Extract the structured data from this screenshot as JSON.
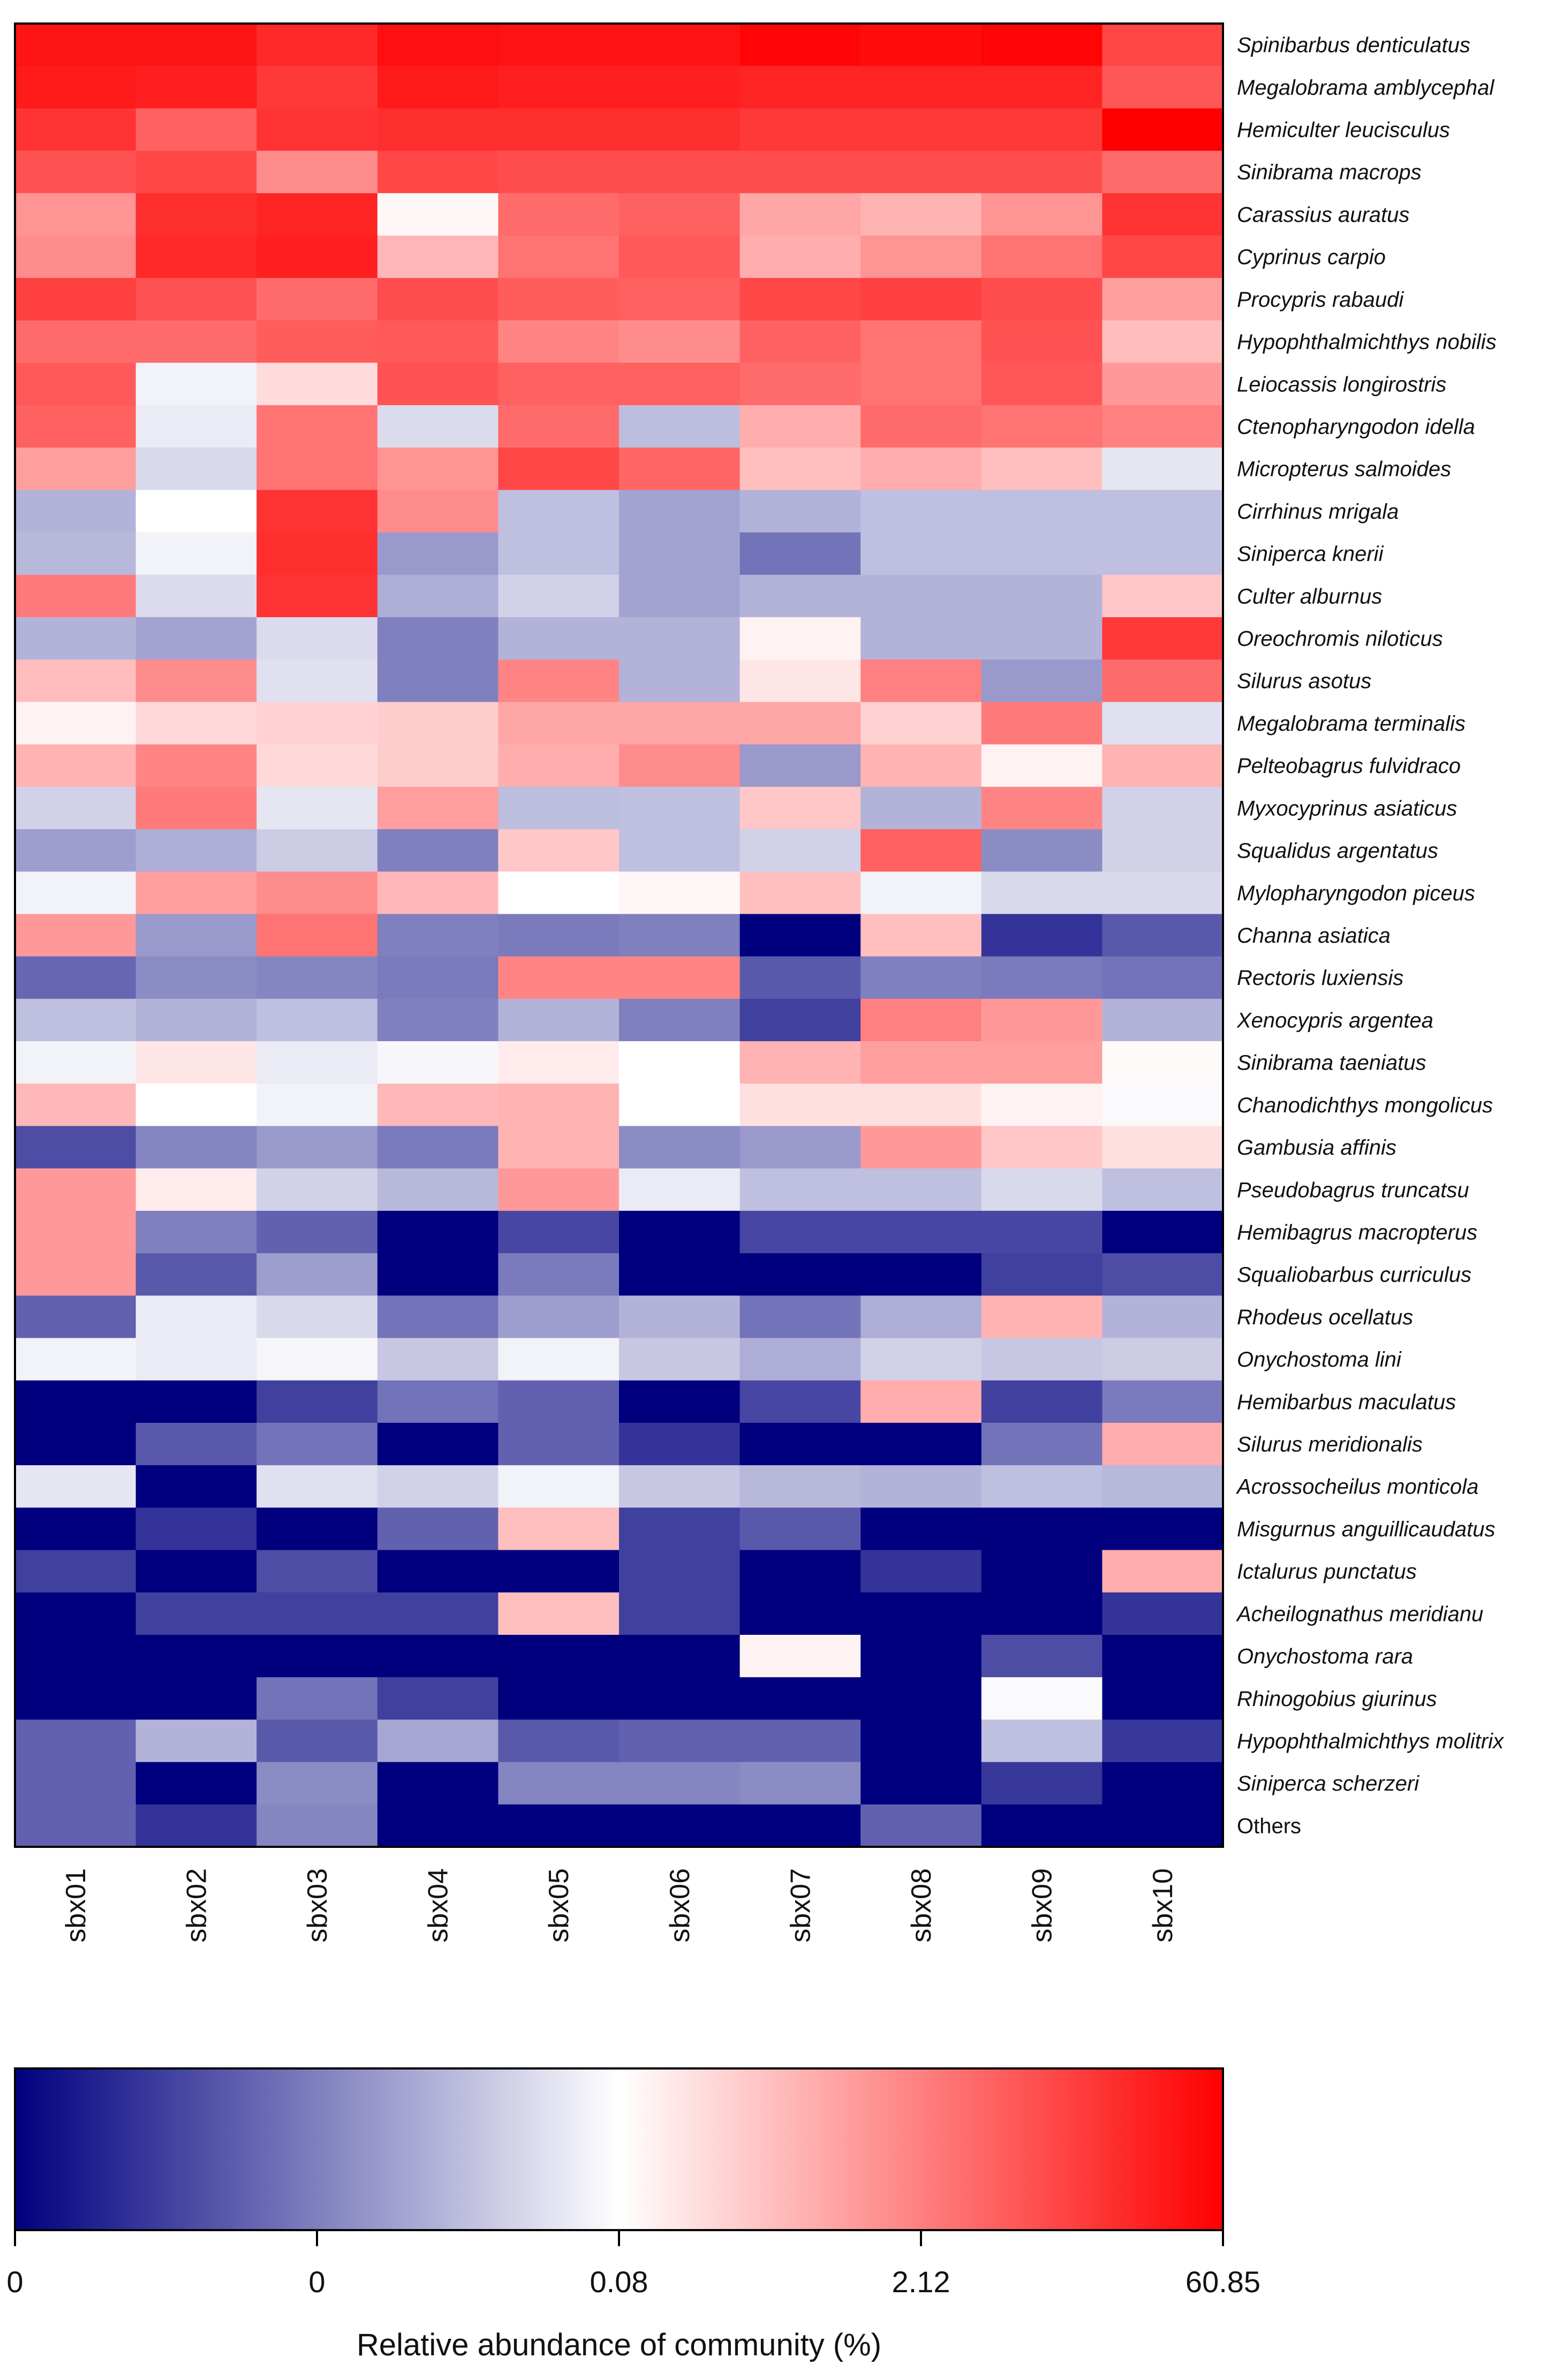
{
  "chart_data": {
    "type": "heatmap",
    "title": "",
    "color_scale": {
      "low": "#00007f",
      "mid": "#ffffff",
      "high": "#ff0000",
      "title": "Relative abundance of community (%)",
      "tick_labels": [
        "0",
        "0",
        "0.08",
        "2.12",
        "60.85"
      ]
    },
    "samples": [
      "sbx01",
      "sbx02",
      "sbx03",
      "sbx04",
      "sbx05",
      "sbx06",
      "sbx07",
      "sbx08",
      "sbx09",
      "sbx10"
    ],
    "species": [
      "Spinibarbus denticulatus",
      "Megalobrama amblycephal",
      "Hemiculter leucisculus",
      "Sinibrama macrops",
      "Carassius auratus",
      "Cyprinus carpio",
      "Procypris rabaudi",
      "Hypophthalmichthys nobilis",
      "Leiocassis longirostris",
      "Ctenopharyngodon idella",
      "Micropterus salmoides",
      "Cirrhinus mrigala",
      "Siniperca knerii",
      "Culter alburnus",
      "Oreochromis niloticus",
      "Silurus asotus",
      "Megalobrama terminalis",
      "Pelteobagrus fulvidraco",
      "Myxocyprinus asiaticus",
      "Squalidus argentatus",
      "Mylopharyngodon piceus",
      "Channa asiatica",
      "Rectoris luxiensis",
      "Xenocypris argentea",
      "Sinibrama taeniatus",
      "Chanodichthys mongolicus",
      "Gambusia affinis",
      "Pseudobagrus truncatsu",
      "Hemibagrus macropterus",
      "Squaliobarbus curriculus",
      "Rhodeus ocellatus",
      "Onychostoma lini",
      "Hemibarbus maculatus",
      "Silurus meridionalis",
      "Acrossocheilus monticola",
      "Misgurnus anguillicaudatus",
      "Ictalurus punctatus",
      "Acheilognathus meridianu",
      "Onychostoma rara",
      "Rhinogobius giurinus",
      "Hypophthalmichthys molitrix",
      "Siniperca scherzeri",
      "Others"
    ],
    "scale_note": "values are relative color-scale intensities from -1 (lowest, dark blue) through 0 (white) to 1 (highest, red)",
    "values": [
      [
        0.92,
        0.92,
        0.84,
        0.94,
        0.93,
        0.93,
        0.98,
        0.95,
        0.98,
        0.72
      ],
      [
        0.9,
        0.88,
        0.78,
        0.9,
        0.88,
        0.88,
        0.86,
        0.86,
        0.86,
        0.66
      ],
      [
        0.8,
        0.62,
        0.8,
        0.82,
        0.82,
        0.82,
        0.78,
        0.78,
        0.78,
        1.0
      ],
      [
        0.68,
        0.72,
        0.45,
        0.72,
        0.7,
        0.7,
        0.7,
        0.7,
        0.7,
        0.58
      ],
      [
        0.42,
        0.82,
        0.86,
        0.03,
        0.58,
        0.62,
        0.35,
        0.3,
        0.42,
        0.8
      ],
      [
        0.45,
        0.84,
        0.88,
        0.28,
        0.55,
        0.65,
        0.32,
        0.42,
        0.55,
        0.72
      ],
      [
        0.75,
        0.68,
        0.58,
        0.7,
        0.64,
        0.62,
        0.72,
        0.75,
        0.7,
        0.38
      ],
      [
        0.58,
        0.58,
        0.64,
        0.65,
        0.48,
        0.45,
        0.62,
        0.55,
        0.68,
        0.26
      ],
      [
        0.65,
        -0.05,
        0.14,
        0.68,
        0.62,
        0.62,
        0.58,
        0.55,
        0.66,
        0.4
      ],
      [
        0.62,
        -0.08,
        0.55,
        -0.14,
        0.58,
        -0.26,
        0.32,
        0.58,
        0.55,
        0.5
      ],
      [
        0.38,
        -0.15,
        0.55,
        0.42,
        0.72,
        0.6,
        0.25,
        0.32,
        0.25,
        -0.1
      ],
      [
        -0.3,
        0.0,
        0.8,
        0.45,
        -0.25,
        -0.36,
        -0.3,
        -0.25,
        -0.25,
        -0.25
      ],
      [
        -0.28,
        -0.05,
        0.82,
        -0.4,
        -0.25,
        -0.36,
        -0.55,
        -0.25,
        -0.25,
        -0.25
      ],
      [
        0.52,
        -0.14,
        0.8,
        -0.32,
        -0.18,
        -0.36,
        -0.3,
        -0.3,
        -0.3,
        0.22
      ],
      [
        -0.3,
        -0.36,
        -0.14,
        -0.5,
        -0.3,
        -0.3,
        0.05,
        -0.3,
        -0.3,
        0.78
      ],
      [
        0.26,
        0.45,
        -0.12,
        -0.5,
        0.48,
        -0.3,
        0.1,
        0.5,
        -0.4,
        0.58
      ],
      [
        0.05,
        0.15,
        0.18,
        0.2,
        0.35,
        0.35,
        0.35,
        0.18,
        0.52,
        -0.12
      ],
      [
        0.3,
        0.48,
        0.15,
        0.2,
        0.32,
        0.45,
        -0.4,
        0.3,
        0.05,
        0.3
      ],
      [
        -0.18,
        0.52,
        -0.1,
        0.38,
        -0.26,
        -0.25,
        0.22,
        -0.3,
        0.48,
        -0.18
      ],
      [
        -0.38,
        -0.32,
        -0.2,
        -0.5,
        0.22,
        -0.25,
        -0.18,
        0.62,
        -0.45,
        -0.18
      ],
      [
        -0.05,
        0.38,
        0.45,
        0.28,
        0.0,
        0.03,
        0.25,
        -0.05,
        -0.15,
        -0.15
      ],
      [
        0.4,
        -0.4,
        0.55,
        -0.5,
        -0.52,
        -0.5,
        -1.0,
        0.25,
        -0.8,
        -0.65
      ],
      [
        -0.6,
        -0.45,
        -0.48,
        -0.52,
        0.48,
        0.48,
        -0.65,
        -0.5,
        -0.52,
        -0.55
      ],
      [
        -0.25,
        -0.3,
        -0.25,
        -0.5,
        -0.3,
        -0.5,
        -0.75,
        0.5,
        0.4,
        -0.3
      ],
      [
        -0.05,
        0.1,
        -0.08,
        -0.03,
        0.08,
        0.0,
        0.3,
        0.38,
        0.38,
        0.02
      ],
      [
        0.28,
        0.0,
        -0.05,
        0.28,
        0.3,
        0.0,
        0.12,
        0.12,
        0.05,
        -0.02
      ],
      [
        -0.7,
        -0.48,
        -0.4,
        -0.52,
        0.3,
        -0.45,
        -0.4,
        0.4,
        0.22,
        0.12
      ],
      [
        0.4,
        0.08,
        -0.18,
        -0.28,
        0.4,
        -0.08,
        -0.25,
        -0.25,
        -0.15,
        -0.25
      ],
      [
        0.4,
        -0.5,
        -0.62,
        -1.0,
        -0.72,
        -1.0,
        -0.72,
        -0.72,
        -0.72,
        -1.0
      ],
      [
        0.4,
        -0.65,
        -0.38,
        -1.0,
        -0.52,
        -1.0,
        -1.0,
        -1.0,
        -0.75,
        -0.7
      ],
      [
        -0.62,
        -0.08,
        -0.15,
        -0.55,
        -0.38,
        -0.3,
        -0.55,
        -0.32,
        0.3,
        -0.3
      ],
      [
        -0.05,
        -0.08,
        -0.04,
        -0.22,
        -0.05,
        -0.22,
        -0.32,
        -0.18,
        -0.22,
        -0.2
      ],
      [
        -1.0,
        -1.0,
        -0.75,
        -0.55,
        -0.62,
        -1.0,
        -0.72,
        0.32,
        -0.75,
        -0.52
      ],
      [
        -1.0,
        -0.65,
        -0.55,
        -1.0,
        -0.62,
        -0.8,
        -1.0,
        -1.0,
        -0.55,
        0.32
      ],
      [
        -0.1,
        -1.0,
        -0.12,
        -0.18,
        -0.05,
        -0.22,
        -0.28,
        -0.3,
        -0.25,
        -0.28
      ],
      [
        -1.0,
        -0.8,
        -1.0,
        -0.62,
        0.25,
        -0.75,
        -0.65,
        -1.0,
        -1.0,
        -1.0
      ],
      [
        -0.75,
        -1.0,
        -0.7,
        -1.0,
        -1.0,
        -0.75,
        -1.0,
        -0.8,
        -1.0,
        0.32
      ],
      [
        -1.0,
        -0.75,
        -0.75,
        -0.75,
        0.25,
        -0.75,
        -1.0,
        -1.0,
        -1.0,
        -0.8
      ],
      [
        -1.0,
        -1.0,
        -1.0,
        -1.0,
        -1.0,
        -1.0,
        0.05,
        -1.0,
        -0.7,
        -1.0
      ],
      [
        -1.0,
        -1.0,
        -0.55,
        -0.75,
        -1.0,
        -1.0,
        -1.0,
        -1.0,
        -0.02,
        -1.0
      ],
      [
        -0.62,
        -0.3,
        -0.65,
        -0.35,
        -0.65,
        -0.62,
        -0.62,
        -1.0,
        -0.25,
        -0.78
      ],
      [
        -0.62,
        -1.0,
        -0.45,
        -1.0,
        -0.48,
        -0.48,
        -0.45,
        -1.0,
        -0.78,
        -1.0
      ],
      [
        -0.62,
        -0.8,
        -0.48,
        -1.0,
        -1.0,
        -1.0,
        -1.0,
        -0.62,
        -1.0,
        -1.0
      ]
    ]
  }
}
